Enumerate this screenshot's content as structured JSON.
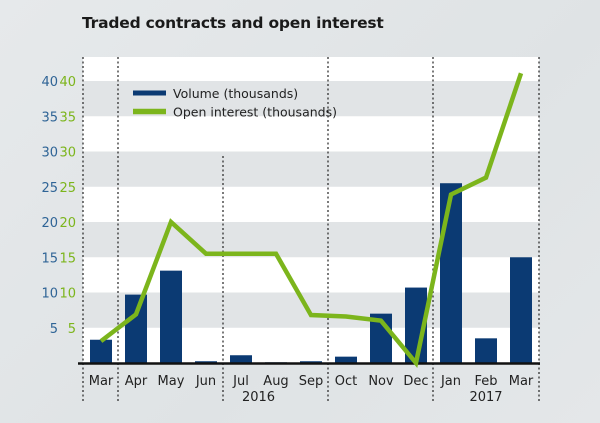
{
  "chart_data": {
    "type": "bar+line",
    "title": "Traded contracts and open interest",
    "categories": [
      "Mar",
      "Apr",
      "May",
      "Jun",
      "Jul",
      "Aug",
      "Sep",
      "Oct",
      "Nov",
      "Dec",
      "Jan",
      "Feb",
      "Mar"
    ],
    "year_groups": [
      {
        "label": "2016",
        "from": 0,
        "to": 9
      },
      {
        "label": "2017",
        "from": 10,
        "to": 12
      }
    ],
    "series": [
      {
        "name": "Volume (thousands)",
        "type": "bar",
        "color": "#0b3a73",
        "values": [
          3.3,
          9.7,
          13.1,
          0.25,
          1.1,
          0.1,
          0.25,
          0.9,
          7.0,
          10.7,
          25.5,
          3.5,
          15.0
        ]
      },
      {
        "name": "Open interest (thousands)",
        "type": "line",
        "color": "#7cb51c",
        "values": [
          3.1,
          6.9,
          20.0,
          15.5,
          15.5,
          15.5,
          6.8,
          6.6,
          6.0,
          0.0,
          23.9,
          26.3,
          41.1
        ]
      }
    ],
    "y_left": {
      "ticks": [
        "5",
        "10",
        "15",
        "20",
        "25",
        "30",
        "35",
        "40"
      ],
      "color": "#2f6496"
    },
    "y_right": {
      "ticks": [
        "5",
        "10",
        "15",
        "20",
        "25",
        "30",
        "35",
        "40"
      ],
      "color": "#7cb51c"
    },
    "ylim": [
      0,
      42
    ],
    "legend": "top-left",
    "grid": "alternating bands"
  }
}
